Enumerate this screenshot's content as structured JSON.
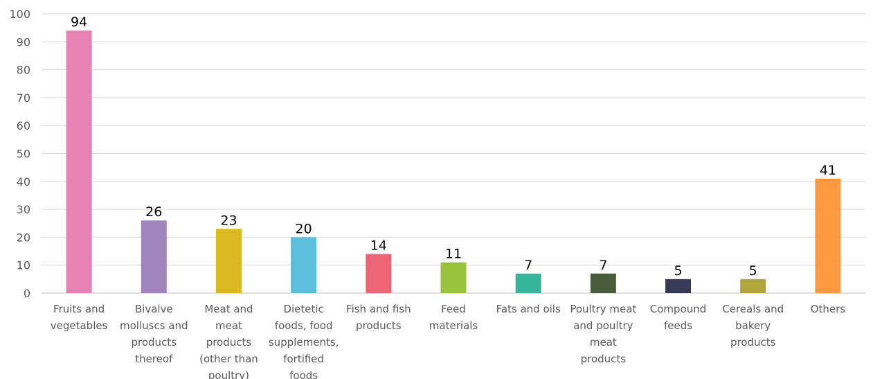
{
  "chart_data": {
    "type": "bar",
    "title": "",
    "xlabel": "",
    "ylabel": "",
    "ylim": [
      0,
      100
    ],
    "yticks": [
      0,
      10,
      20,
      30,
      40,
      50,
      60,
      70,
      80,
      90,
      100
    ],
    "grid": true,
    "legend": "none",
    "categories": [
      [
        "Fruits and",
        "vegetables"
      ],
      [
        "Bivalve",
        "molluscs and",
        "products",
        "thereof"
      ],
      [
        "Meat and",
        "meat",
        "products",
        "(other than",
        "poultry)"
      ],
      [
        "Dietetic",
        "foods, food",
        "supplements,",
        "fortified",
        "foods"
      ],
      [
        "Fish and fish",
        "products"
      ],
      [
        "Feed",
        "materials"
      ],
      [
        "Fats and oils"
      ],
      [
        "Poultry meat",
        "and poultry",
        "meat",
        "products"
      ],
      [
        "Compound",
        "feeds"
      ],
      [
        "Cereals and",
        "bakery",
        "products"
      ],
      [
        "Others"
      ]
    ],
    "values": [
      94,
      26,
      23,
      20,
      14,
      11,
      7,
      7,
      5,
      5,
      41
    ],
    "data_labels": [
      "94",
      "26",
      "23",
      "20",
      "14",
      "11",
      "7",
      "7",
      "5",
      "5",
      "41"
    ],
    "colors": [
      "#e681b3",
      "#a084bd",
      "#dab820",
      "#5bbfdb",
      "#ec6577",
      "#9ac23c",
      "#36b59b",
      "#475c3b",
      "#393a58",
      "#afa53a",
      "#fd9a41"
    ]
  }
}
